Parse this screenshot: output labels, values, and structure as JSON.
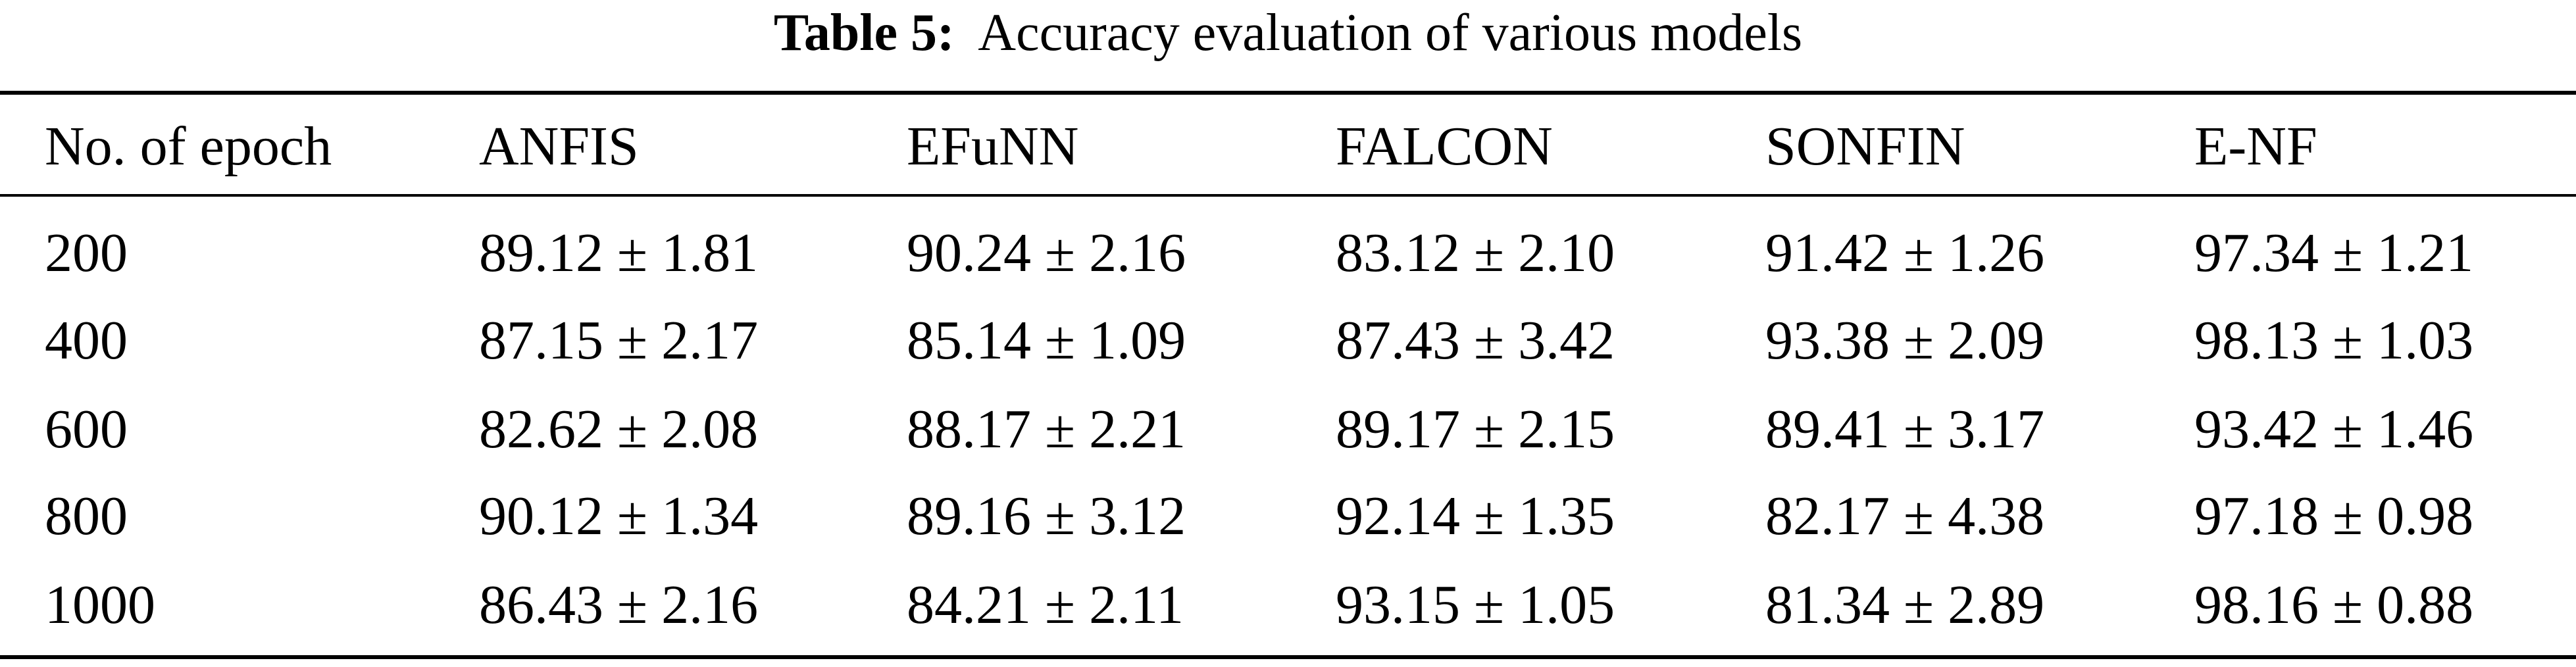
{
  "caption": {
    "label": "Table 5:",
    "text": "Accuracy evaluation of various models"
  },
  "table": {
    "headers": [
      "No. of epoch",
      "ANFIS",
      "EFuNN",
      "FALCON",
      "SONFIN",
      "E-NF"
    ],
    "rows": [
      [
        "200",
        "89.12 ± 1.81",
        "90.24 ± 2.16",
        "83.12 ± 2.10",
        "91.42 ± 1.26",
        "97.34 ± 1.21"
      ],
      [
        "400",
        "87.15 ± 2.17",
        "85.14 ± 1.09",
        "87.43 ± 3.42",
        "93.38 ± 2.09",
        "98.13 ± 1.03"
      ],
      [
        "600",
        "82.62 ± 2.08",
        "88.17 ± 2.21",
        "89.17 ± 2.15",
        "89.41 ± 3.17",
        "93.42 ± 1.46"
      ],
      [
        "800",
        "90.12 ± 1.34",
        "89.16 ± 3.12",
        "92.14 ± 1.35",
        "82.17 ± 4.38",
        "97.18 ± 0.98"
      ],
      [
        "1000",
        "86.43 ± 2.16",
        "84.21 ± 2.11",
        "93.15 ± 1.05",
        "81.34 ± 2.89",
        "98.16 ± 0.88"
      ]
    ]
  }
}
